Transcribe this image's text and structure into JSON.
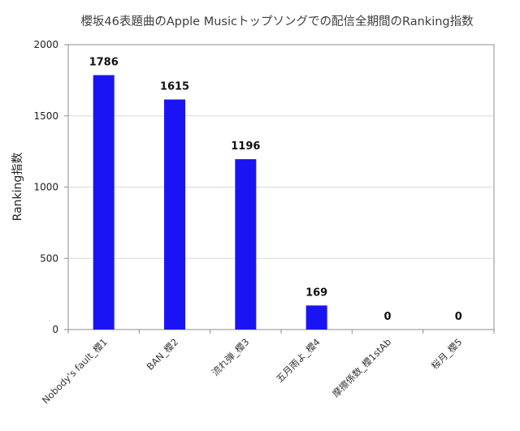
{
  "chart_data": {
    "type": "bar",
    "title": "櫻坂46表題曲のApple Musicトップソングでの配信全期間のRanking指数",
    "xlabel": "",
    "ylabel": "Ranking指数",
    "categories": [
      "Nobody's fault_櫻1",
      "BAN_櫻2",
      "流れ弾_櫻3",
      "五月雨よ_櫻4",
      "摩擦係数_櫻1stAb",
      "桜月_櫻5"
    ],
    "values": [
      1786,
      1615,
      1196,
      169,
      0,
      0
    ],
    "ylim": [
      0,
      2000
    ],
    "yticks": [
      0,
      500,
      1000,
      1500,
      2000
    ],
    "grid": true,
    "legend": "none",
    "bar_color": "#1a14f5"
  }
}
